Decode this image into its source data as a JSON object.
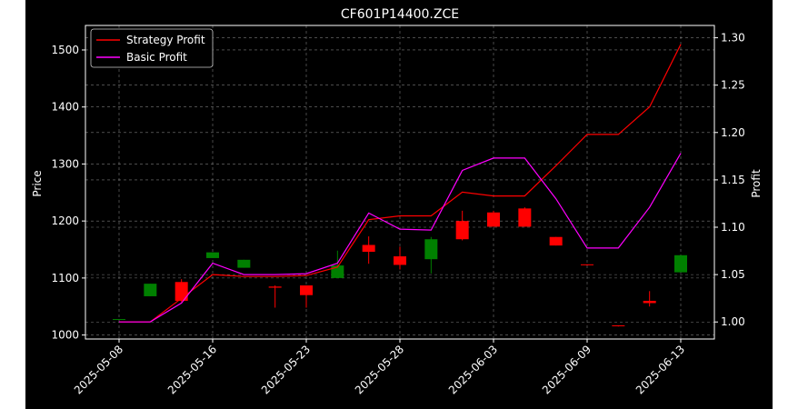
{
  "chart_data": {
    "type": "candlestick",
    "title": "CF601P14400.ZCE",
    "ylabel_left": "Price",
    "ylabel_right": "Profit",
    "xlabel": "",
    "grid": true,
    "legend_position": "top-left",
    "x_ticks": [
      "2025-05-08",
      "2025-05-16",
      "2025-05-23",
      "2025-05-28",
      "2025-06-03",
      "2025-06-09",
      "2025-06-13"
    ],
    "y_ticks_left": [
      1000,
      1100,
      1200,
      1300,
      1400,
      1500
    ],
    "y_ticks_right": [
      "1.00",
      "1.05",
      "1.10",
      "1.15",
      "1.20",
      "1.25",
      "1.30"
    ],
    "ylim_left": [
      993,
      1543
    ],
    "ylim_right": [
      0.982,
      1.313
    ],
    "colors": {
      "up": "#008000",
      "down": "#ff0000",
      "strategy": "#ff0000",
      "basic": "#ff00ff",
      "background": "#000000",
      "text": "#ffffff"
    },
    "candles": [
      {
        "i": 0,
        "open": 1028,
        "high": 1028,
        "low": 1028,
        "close": 1028
      },
      {
        "i": 1,
        "open": 1068,
        "high": 1090,
        "low": 1068,
        "close": 1090
      },
      {
        "i": 2,
        "open": 1093,
        "high": 1098,
        "low": 1058,
        "close": 1060
      },
      {
        "i": 3,
        "open": 1135,
        "high": 1145,
        "low": 1135,
        "close": 1145
      },
      {
        "i": 4,
        "open": 1118,
        "high": 1132,
        "low": 1118,
        "close": 1132
      },
      {
        "i": 5,
        "open": 1085,
        "high": 1087,
        "low": 1048,
        "close": 1083
      },
      {
        "i": 6,
        "open": 1087,
        "high": 1087,
        "low": 1048,
        "close": 1070
      },
      {
        "i": 7,
        "open": 1100,
        "high": 1148,
        "low": 1100,
        "close": 1122
      },
      {
        "i": 8,
        "open": 1158,
        "high": 1173,
        "low": 1125,
        "close": 1146
      },
      {
        "i": 9,
        "open": 1138,
        "high": 1155,
        "low": 1115,
        "close": 1123
      },
      {
        "i": 10,
        "open": 1133,
        "high": 1172,
        "low": 1108,
        "close": 1168
      },
      {
        "i": 11,
        "open": 1200,
        "high": 1218,
        "low": 1166,
        "close": 1168
      },
      {
        "i": 12,
        "open": 1215,
        "high": 1218,
        "low": 1190,
        "close": 1190
      },
      {
        "i": 13,
        "open": 1222,
        "high": 1224,
        "low": 1190,
        "close": 1190
      },
      {
        "i": 14,
        "open": 1172,
        "high": 1172,
        "low": 1157,
        "close": 1157
      },
      {
        "i": 15,
        "open": 1124,
        "high": 1124,
        "low": 1122,
        "close": 1123
      },
      {
        "i": 16,
        "open": 1017,
        "high": 1017,
        "low": 1015,
        "close": 1016
      },
      {
        "i": 17,
        "open": 1060,
        "high": 1077,
        "low": 1050,
        "close": 1056
      },
      {
        "i": 18,
        "open": 1110,
        "high": 1140,
        "low": 1110,
        "close": 1140
      }
    ],
    "series": [
      {
        "name": "Strategy Profit",
        "axis": "right",
        "values": [
          1.0,
          1.0,
          1.025,
          1.05,
          1.048,
          1.048,
          1.049,
          1.058,
          1.108,
          1.112,
          1.112,
          1.137,
          1.133,
          1.133,
          1.165,
          1.198,
          1.198,
          1.227,
          1.293
        ]
      },
      {
        "name": "Basic Profit",
        "axis": "right",
        "values": [
          1.0,
          1.0,
          1.02,
          1.062,
          1.05,
          1.05,
          1.051,
          1.062,
          1.115,
          1.098,
          1.097,
          1.16,
          1.173,
          1.173,
          1.13,
          1.078,
          1.078,
          1.121,
          1.178
        ]
      }
    ]
  }
}
